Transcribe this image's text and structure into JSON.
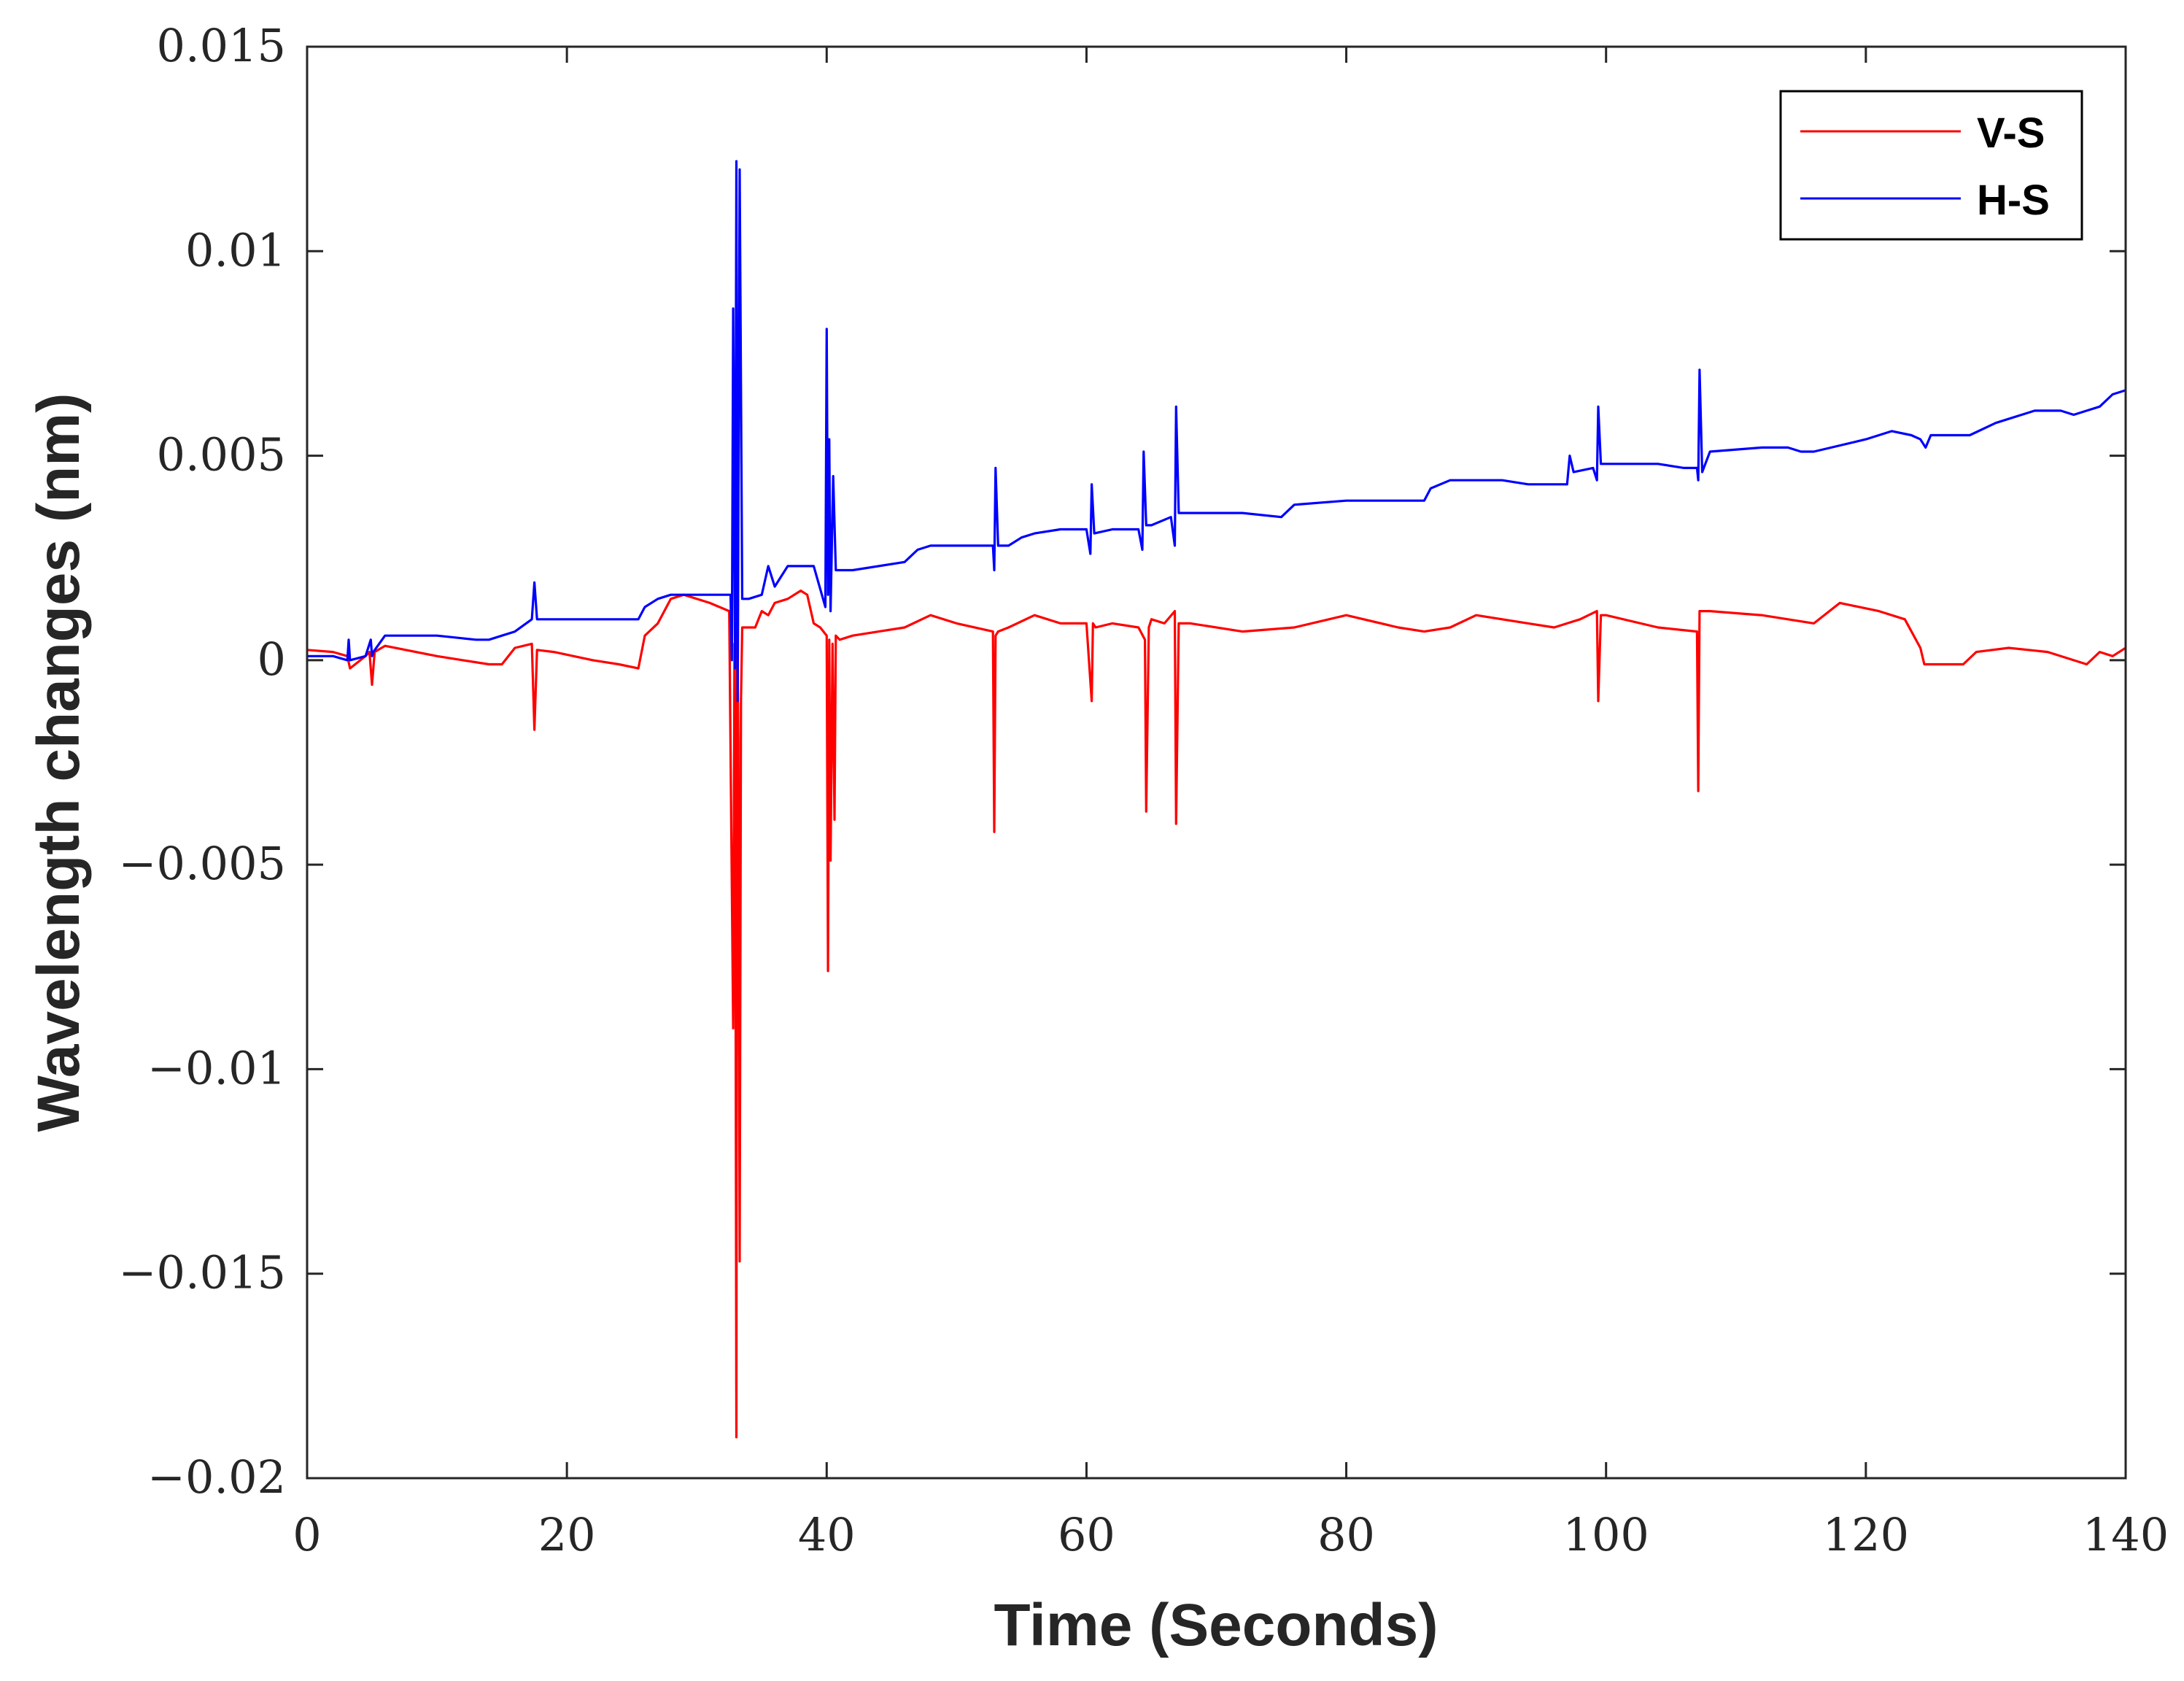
{
  "chart_data": {
    "type": "line",
    "title": "",
    "xlabel": "Time (Seconds)",
    "ylabel": "Wavelength changes (nm)",
    "xlim": [
      0,
      140
    ],
    "ylim": [
      -0.02,
      0.015
    ],
    "xticks": [
      0,
      20,
      40,
      60,
      80,
      100,
      120,
      140
    ],
    "xtick_labels": [
      "0",
      "20",
      "40",
      "60",
      "80",
      "100",
      "120",
      "140"
    ],
    "yticks": [
      -0.02,
      -0.015,
      -0.01,
      -0.005,
      0,
      0.005,
      0.01,
      0.015
    ],
    "ytick_labels": [
      "−0.02",
      "−0.015",
      "−0.01",
      "−0.005",
      "0",
      "0.005",
      "0.01",
      "0.015"
    ],
    "grid": false,
    "legend": "top-right",
    "series": [
      {
        "name": "V-S",
        "color": "#ff0000",
        "x": [
          0,
          2,
          3.1,
          3.3,
          4.5,
          4.8,
          5.0,
          5.2,
          6,
          10,
          12,
          14,
          15,
          16,
          17.3,
          17.5,
          17.7,
          19,
          22,
          24,
          25.5,
          26,
          27,
          28,
          29,
          31,
          32.5,
          32.8,
          32.9,
          33.0,
          33.05,
          33.1,
          33.2,
          33.3,
          33.4,
          33.5,
          34.5,
          35,
          35.5,
          36,
          37,
          38,
          38.5,
          39,
          39.5,
          40,
          40.1,
          40.2,
          40.3,
          40.45,
          40.6,
          40.7,
          41,
          42,
          44,
          46,
          48,
          50,
          52.8,
          52.9,
          53.0,
          53.2,
          54,
          56,
          58,
          60,
          60.4,
          60.5,
          60.7,
          62,
          64,
          64.5,
          64.6,
          64.8,
          65,
          66,
          66.8,
          66.9,
          67.1,
          68,
          72,
          76,
          80,
          84,
          86,
          88,
          90,
          94,
          96,
          98,
          99.3,
          99.4,
          99.6,
          100,
          104,
          107,
          107.1,
          107.2,
          107.4,
          108,
          112,
          116,
          118,
          121,
          123,
          124.2,
          124.5,
          126,
          127.5,
          128.5,
          131,
          134,
          136,
          137,
          138,
          139,
          140
        ],
        "values": [
          0.00025,
          0.0002,
          0.0001,
          -0.0002,
          0.0001,
          0.0002,
          -0.0006,
          0.0002,
          0.00035,
          0.0001,
          0.0,
          -0.0001,
          -0.0001,
          0.0003,
          0.0004,
          -0.0017,
          0.00025,
          0.0002,
          0.0,
          -0.0001,
          -0.0002,
          0.0006,
          0.0009,
          0.0015,
          0.0016,
          0.0014,
          0.0012,
          -0.009,
          0.0004,
          -0.0095,
          -0.019,
          0.001,
          -0.002,
          -0.0147,
          -0.001,
          0.0008,
          0.0008,
          0.0012,
          0.0011,
          0.0014,
          0.0015,
          0.0017,
          0.0016,
          0.0009,
          0.0008,
          0.0006,
          -0.0076,
          0.0005,
          -0.0049,
          0.0004,
          -0.0039,
          0.0006,
          0.0005,
          0.0006,
          0.0007,
          0.0008,
          0.0011,
          0.0009,
          0.0007,
          -0.0042,
          0.0006,
          0.0007,
          0.0008,
          0.0011,
          0.0009,
          0.0009,
          -0.001,
          0.0009,
          0.0008,
          0.0009,
          0.0008,
          0.0005,
          -0.0037,
          0.0008,
          0.001,
          0.0009,
          0.0012,
          -0.004,
          0.0009,
          0.0009,
          0.0007,
          0.0008,
          0.0011,
          0.0008,
          0.0007,
          0.0008,
          0.0011,
          0.0009,
          0.0008,
          0.001,
          0.0012,
          -0.001,
          0.0011,
          0.0011,
          0.0008,
          0.0007,
          -0.0032,
          0.0012,
          0.0012,
          0.0012,
          0.0011,
          0.0009,
          0.0014,
          0.0012,
          0.001,
          0.0003,
          -0.0001,
          -0.0001,
          -0.0001,
          0.0002,
          0.0003,
          0.0002,
          0.0,
          -0.0001,
          0.0002,
          0.0001,
          0.0003
        ]
      },
      {
        "name": "H-S",
        "color": "#0000ff",
        "x": [
          0,
          2,
          3.1,
          3.2,
          3.3,
          4.5,
          4.9,
          5.0,
          5.1,
          6,
          10,
          13,
          14,
          15,
          16,
          17.3,
          17.5,
          17.7,
          19,
          22,
          24,
          25.5,
          26,
          27,
          28,
          31,
          32.6,
          32.7,
          32.8,
          32.95,
          33.05,
          33.15,
          33.3,
          33.5,
          34,
          35,
          35.5,
          36,
          37,
          38,
          39,
          39.9,
          40.0,
          40.1,
          40.2,
          40.3,
          40.5,
          40.7,
          42,
          46,
          47,
          48,
          50,
          52.8,
          52.9,
          53.0,
          53.2,
          54,
          55,
          56,
          58,
          60,
          60.3,
          60.4,
          60.6,
          62,
          64,
          64.3,
          64.4,
          64.6,
          65,
          66.5,
          66.8,
          66.9,
          67.1,
          68,
          72,
          75,
          76,
          80,
          84,
          86,
          86.5,
          88,
          92,
          94,
          96,
          97,
          97.2,
          97.5,
          99,
          99.3,
          99.4,
          99.6,
          100,
          104,
          106,
          107,
          107.1,
          107.2,
          107.4,
          108,
          112,
          114,
          115,
          116,
          120,
          122,
          123.5,
          124.2,
          124.6,
          125,
          127,
          128,
          130,
          133,
          134,
          135,
          136,
          137,
          138,
          139,
          140
        ],
        "values": [
          0.0001,
          0.0001,
          0.0,
          0.0005,
          0.0,
          0.0001,
          0.0005,
          0.0001,
          0.0002,
          0.0006,
          0.0006,
          0.0005,
          0.0005,
          0.0006,
          0.0007,
          0.001,
          0.0019,
          0.001,
          0.001,
          0.001,
          0.001,
          0.001,
          0.0013,
          0.0015,
          0.0016,
          0.0016,
          0.0016,
          0.0,
          0.0086,
          -0.0002,
          0.0122,
          -0.001,
          0.012,
          0.0015,
          0.0015,
          0.0016,
          0.0023,
          0.0018,
          0.0023,
          0.0023,
          0.0023,
          0.0013,
          0.0081,
          0.0016,
          0.0054,
          0.0012,
          0.0045,
          0.0022,
          0.0022,
          0.0024,
          0.0027,
          0.0028,
          0.0028,
          0.0028,
          0.0022,
          0.0047,
          0.0028,
          0.0028,
          0.003,
          0.0031,
          0.0032,
          0.0032,
          0.0026,
          0.0043,
          0.0031,
          0.0032,
          0.0032,
          0.0027,
          0.0051,
          0.0033,
          0.0033,
          0.0035,
          0.0028,
          0.0062,
          0.0036,
          0.0036,
          0.0036,
          0.0035,
          0.0038,
          0.0039,
          0.0039,
          0.0039,
          0.0042,
          0.0044,
          0.0044,
          0.0043,
          0.0043,
          0.0043,
          0.005,
          0.0046,
          0.0047,
          0.0044,
          0.0062,
          0.0048,
          0.0048,
          0.0048,
          0.0047,
          0.0047,
          0.0044,
          0.0071,
          0.0046,
          0.0051,
          0.0052,
          0.0052,
          0.0051,
          0.0051,
          0.0054,
          0.0056,
          0.0055,
          0.0054,
          0.0052,
          0.0055,
          0.0055,
          0.0055,
          0.0058,
          0.0061,
          0.0061,
          0.0061,
          0.006,
          0.0061,
          0.0062,
          0.0065,
          0.0066
        ]
      }
    ]
  }
}
